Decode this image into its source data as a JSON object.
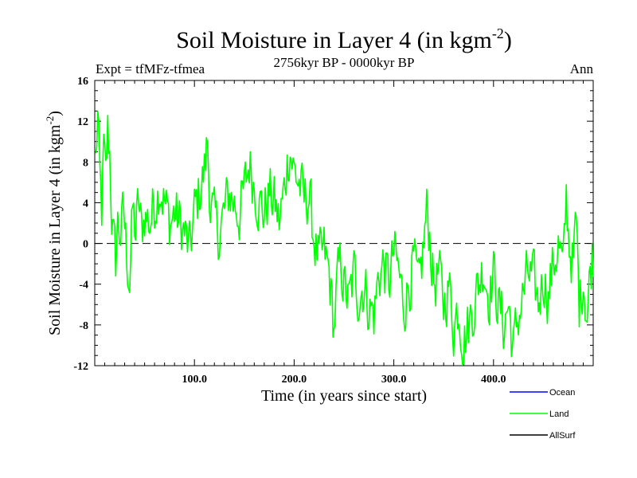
{
  "chart_data": {
    "type": "line",
    "title": "Soil Moisture in Layer 4 (in kgm",
    "title_sup": "-2",
    "title_end": ")",
    "left_label": "Expt = tfMFz-tfmea",
    "subtitle": "2756kyr BP - 0000kyr BP",
    "right_label": "Ann",
    "xlabel": "Time (in years since start)",
    "ylabel": "Soil Moisture in Layer 4 (in kgm",
    "ylabel_sup": "-2",
    "ylabel_end": ")",
    "xlim": [
      0,
      500
    ],
    "ylim": [
      -12,
      16
    ],
    "xticks": [
      100,
      200,
      300,
      400
    ],
    "xtick_labels": [
      "100.0",
      "200.0",
      "300.0",
      "400.0"
    ],
    "yticks": [
      -12,
      -8,
      -4,
      0,
      4,
      8,
      12,
      16
    ],
    "ytick_labels": [
      "-12",
      "-8",
      "-4",
      "0",
      "4",
      "8",
      "12",
      "16"
    ],
    "zero_line": 0,
    "legend": [
      {
        "name": "Ocean",
        "color": "#0000ff"
      },
      {
        "name": "Land",
        "color": "#00ff00"
      },
      {
        "name": "AllSurf",
        "color": "#000000"
      }
    ],
    "series": [
      {
        "name": "Land",
        "color": "#00ff00",
        "keypoints": [
          [
            1,
            8
          ],
          [
            3,
            12.5
          ],
          [
            5,
            6
          ],
          [
            7,
            3
          ],
          [
            9,
            9
          ],
          [
            11,
            6
          ],
          [
            13,
            11
          ],
          [
            15,
            9
          ],
          [
            17,
            3
          ],
          [
            19,
            0
          ],
          [
            21,
            -2
          ],
          [
            23,
            2
          ],
          [
            26,
            1
          ],
          [
            29,
            3
          ],
          [
            32,
            -1
          ],
          [
            35,
            -3.5
          ],
          [
            38,
            3
          ],
          [
            41,
            1
          ],
          [
            44,
            4
          ],
          [
            47,
            1
          ],
          [
            50,
            3
          ],
          [
            55,
            2
          ],
          [
            60,
            4
          ],
          [
            65,
            6
          ],
          [
            70,
            4
          ],
          [
            75,
            2
          ],
          [
            80,
            3
          ],
          [
            85,
            2
          ],
          [
            90,
            1
          ],
          [
            95,
            -1
          ],
          [
            100,
            3
          ],
          [
            105,
            5
          ],
          [
            110,
            7
          ],
          [
            113,
            10
          ],
          [
            116,
            4
          ],
          [
            120,
            2
          ],
          [
            125,
            1
          ],
          [
            130,
            3
          ],
          [
            135,
            5
          ],
          [
            140,
            4
          ],
          [
            145,
            3
          ],
          [
            150,
            5
          ],
          [
            155,
            8
          ],
          [
            160,
            6
          ],
          [
            165,
            4
          ],
          [
            170,
            3
          ],
          [
            175,
            5
          ],
          [
            180,
            4
          ],
          [
            185,
            2
          ],
          [
            190,
            5
          ],
          [
            193,
            8
          ],
          [
            196,
            9.5
          ],
          [
            200,
            7
          ],
          [
            205,
            6
          ],
          [
            210,
            4
          ],
          [
            215,
            5
          ],
          [
            218,
            2
          ],
          [
            221,
            0
          ],
          [
            225,
            -2
          ],
          [
            230,
            -1
          ],
          [
            235,
            -3
          ],
          [
            238,
            -6
          ],
          [
            240,
            -8.5
          ],
          [
            243,
            -4
          ],
          [
            247,
            -2
          ],
          [
            250,
            -4
          ],
          [
            255,
            -6
          ],
          [
            260,
            -3
          ],
          [
            265,
            -5
          ],
          [
            270,
            -4
          ],
          [
            275,
            -6
          ],
          [
            280,
            -7
          ],
          [
            285,
            -3
          ],
          [
            290,
            -2
          ],
          [
            295,
            -4
          ],
          [
            300,
            -1
          ],
          [
            305,
            -3
          ],
          [
            310,
            -6
          ],
          [
            315,
            -4
          ],
          [
            320,
            -2
          ],
          [
            325,
            -5
          ],
          [
            330,
            0
          ],
          [
            333,
            3
          ],
          [
            336,
            1
          ],
          [
            340,
            -4
          ],
          [
            345,
            -3
          ],
          [
            350,
            -6
          ],
          [
            355,
            -4
          ],
          [
            360,
            -8
          ],
          [
            365,
            -6
          ],
          [
            370,
            -9.5
          ],
          [
            375,
            -8
          ],
          [
            380,
            -6
          ],
          [
            385,
            -4
          ],
          [
            390,
            -2
          ],
          [
            395,
            -5
          ],
          [
            400,
            -3
          ],
          [
            405,
            -6
          ],
          [
            410,
            -8
          ],
          [
            415,
            -6
          ],
          [
            420,
            -10.5
          ],
          [
            425,
            -7
          ],
          [
            430,
            -5
          ],
          [
            435,
            -3
          ],
          [
            440,
            -4
          ],
          [
            445,
            -6
          ],
          [
            450,
            -3
          ],
          [
            455,
            -5
          ],
          [
            460,
            -2
          ],
          [
            465,
            0
          ],
          [
            470,
            -3
          ],
          [
            473,
            4.5
          ],
          [
            476,
            0
          ],
          [
            480,
            -2
          ],
          [
            483,
            2
          ],
          [
            486,
            -6
          ],
          [
            490,
            -3
          ],
          [
            494,
            -7
          ],
          [
            497,
            -3
          ],
          [
            499,
            -1
          ]
        ]
      }
    ]
  }
}
